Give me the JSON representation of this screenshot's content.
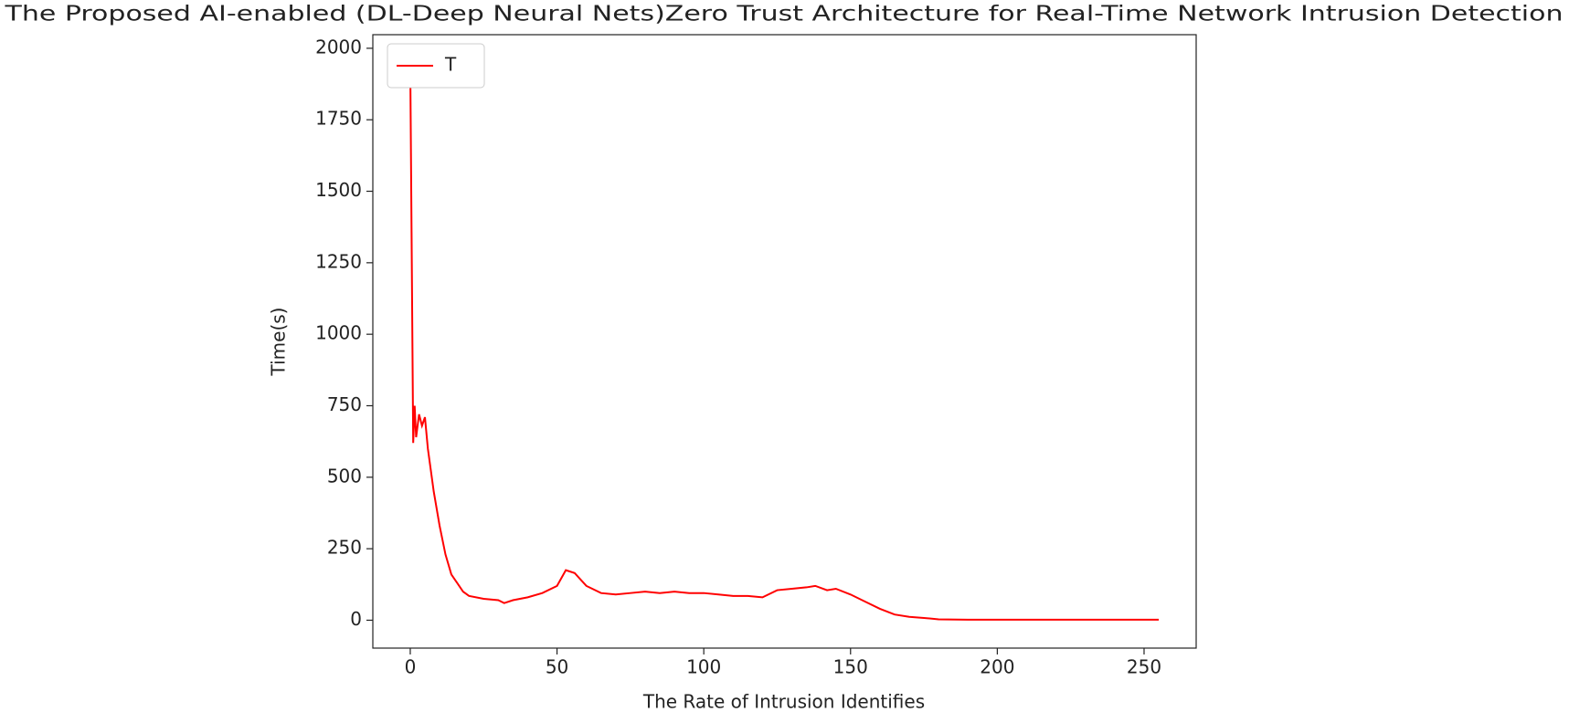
{
  "chart_data": {
    "type": "line",
    "title": "The Proposed AI-enabled (DL-Deep Neural Nets)Zero Trust Architecture for Real-Time Network Intrusion Detection",
    "xlabel": "The Rate of Intrusion Identifies",
    "ylabel": "Time(s)",
    "x": [
      0,
      1,
      1.5,
      2,
      3,
      4,
      5,
      6,
      8,
      10,
      12,
      14,
      16,
      18,
      20,
      25,
      30,
      32,
      35,
      40,
      45,
      50,
      53,
      56,
      60,
      65,
      70,
      75,
      80,
      85,
      90,
      95,
      100,
      105,
      110,
      115,
      120,
      125,
      130,
      135,
      138,
      142,
      145,
      150,
      155,
      160,
      165,
      170,
      175,
      180,
      190,
      200,
      220,
      240,
      255
    ],
    "series": [
      {
        "name": "T",
        "color": "#ff0000",
        "values": [
          1950,
          620,
          750,
          640,
          720,
          680,
          710,
          600,
          450,
          330,
          230,
          160,
          130,
          100,
          85,
          75,
          70,
          60,
          70,
          80,
          95,
          120,
          175,
          165,
          120,
          95,
          90,
          95,
          100,
          95,
          100,
          95,
          95,
          90,
          85,
          85,
          80,
          105,
          110,
          115,
          120,
          105,
          110,
          90,
          65,
          40,
          20,
          12,
          8,
          3,
          2,
          2,
          2,
          2,
          2
        ]
      }
    ],
    "xlim": [
      -12.75,
      267.75
    ],
    "ylim": [
      -97.5,
      2047.5
    ],
    "xticks": [
      0,
      50,
      100,
      150,
      200,
      250
    ],
    "yticks": [
      0,
      250,
      500,
      750,
      1000,
      1250,
      1500,
      1750,
      2000
    ],
    "legend": "upper left"
  }
}
